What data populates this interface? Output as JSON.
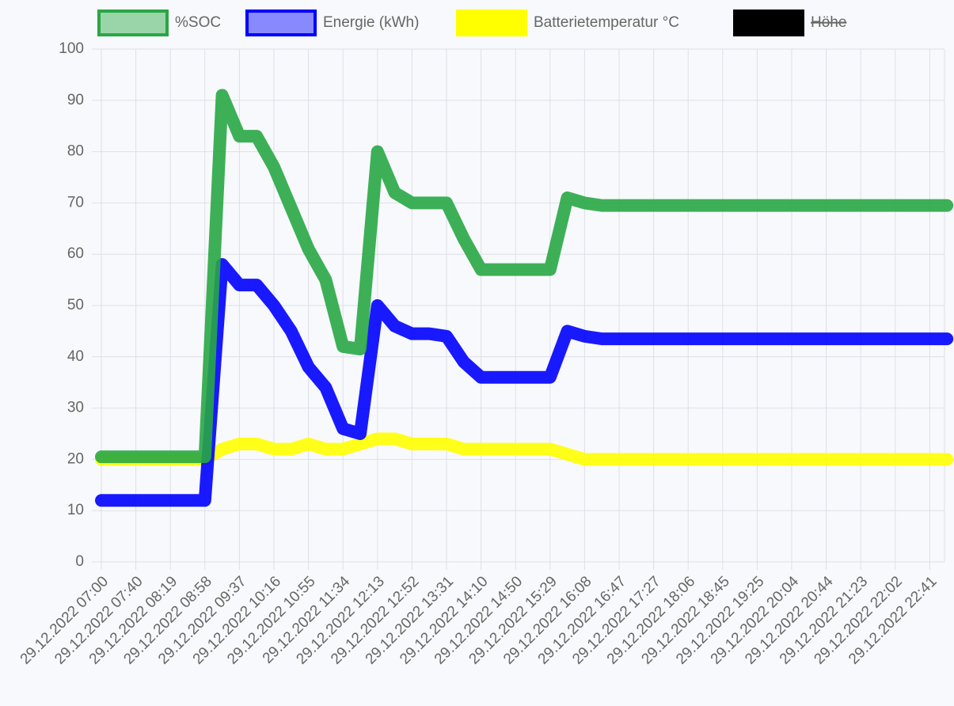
{
  "chart_data": {
    "type": "line",
    "categories": [
      "29.12.2022 07:00",
      null,
      "29.12.2022 07:40",
      null,
      "29.12.2022 08:19",
      null,
      "29.12.2022 08:58",
      null,
      "29.12.2022 09:37",
      null,
      "29.12.2022 10:16",
      null,
      "29.12.2022 10:55",
      null,
      "29.12.2022 11:34",
      null,
      "29.12.2022 12:13",
      null,
      "29.12.2022 12:52",
      null,
      "29.12.2022 13:31",
      null,
      "29.12.2022 14:10",
      null,
      "29.12.2022 14:50",
      null,
      "29.12.2022 15:29",
      null,
      "29.12.2022 16:08",
      null,
      "29.12.2022 16:47",
      null,
      "29.12.2022 17:27",
      null,
      "29.12.2022 18:06",
      null,
      "29.12.2022 18:45",
      null,
      "29.12.2022 19:25",
      null,
      "29.12.2022 20:04",
      null,
      "29.12.2022 20:44",
      null,
      "29.12.2022 21:23",
      null,
      "29.12.2022 22:02",
      null,
      "29.12.2022 22:41",
      null
    ],
    "series": [
      {
        "name": "%SOC",
        "color": "#28a745",
        "values": [
          20.5,
          20.5,
          20.5,
          20.5,
          20.5,
          20.5,
          20.5,
          91,
          83,
          83,
          77,
          69,
          61,
          55,
          42,
          41.5,
          80,
          72,
          70,
          70,
          70,
          63,
          57,
          57,
          57,
          57,
          57,
          71,
          70,
          69.5,
          69.5,
          69.5,
          69.5,
          69.5,
          69.5,
          69.5,
          69.5,
          69.5,
          69.5,
          69.5,
          69.5,
          69.5,
          69.5,
          69.5,
          69.5,
          69.5,
          69.5,
          69.5,
          69.5,
          69.5
        ]
      },
      {
        "name": "Energie (kWh)",
        "color": "#0000ff",
        "values": [
          12,
          12,
          12,
          12,
          12,
          12,
          12,
          58,
          54,
          54,
          50,
          45,
          38,
          34,
          26,
          25,
          50,
          46,
          44.5,
          44.5,
          44,
          39,
          36,
          36,
          36,
          36,
          36,
          45,
          44,
          43.5,
          43.5,
          43.5,
          43.5,
          43.5,
          43.5,
          43.5,
          43.5,
          43.5,
          43.5,
          43.5,
          43.5,
          43.5,
          43.5,
          43.5,
          43.5,
          43.5,
          43.5,
          43.5,
          43.5,
          43.5
        ]
      },
      {
        "name": "Batterietemperatur °C",
        "color": "#ffff00",
        "values": [
          20,
          20,
          20,
          20,
          20,
          20,
          20,
          22,
          23,
          23,
          22,
          22,
          23,
          22,
          22,
          23,
          24,
          24,
          23,
          23,
          23,
          22,
          22,
          22,
          22,
          22,
          22,
          21,
          20,
          20,
          20,
          20,
          20,
          20,
          20,
          20,
          20,
          20,
          20,
          20,
          20,
          20,
          20,
          20,
          20,
          20,
          20,
          20,
          20,
          20
        ]
      },
      {
        "name": "Höhe",
        "color": "#000000",
        "hidden": true
      }
    ],
    "ylim": [
      0,
      100
    ],
    "yticks": [
      0,
      10,
      20,
      30,
      40,
      50,
      60,
      70,
      80,
      90,
      100
    ],
    "grid": true
  }
}
